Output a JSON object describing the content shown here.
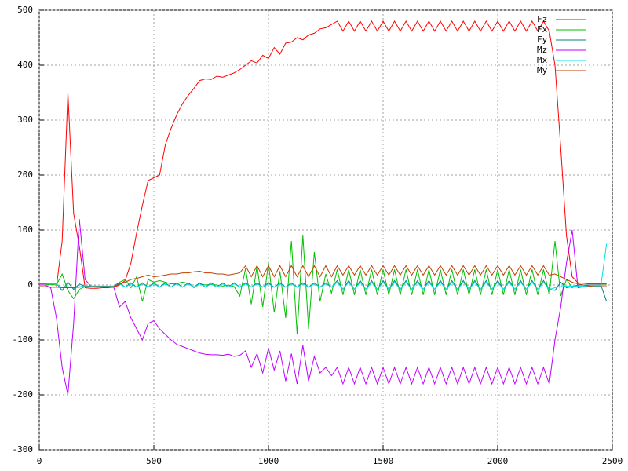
{
  "chart_data": {
    "type": "line",
    "x": [
      0,
      25,
      50,
      75,
      100,
      125,
      150,
      175,
      200,
      225,
      250,
      275,
      300,
      325,
      350,
      375,
      400,
      425,
      450,
      475,
      500,
      525,
      550,
      575,
      600,
      625,
      650,
      675,
      700,
      725,
      750,
      775,
      800,
      825,
      850,
      875,
      900,
      925,
      950,
      975,
      1000,
      1025,
      1050,
      1075,
      1100,
      1125,
      1150,
      1175,
      1200,
      1225,
      1250,
      1275,
      1300,
      1325,
      1350,
      1375,
      1400,
      1425,
      1450,
      1475,
      1500,
      1525,
      1550,
      1575,
      1600,
      1625,
      1650,
      1675,
      1700,
      1725,
      1750,
      1775,
      1800,
      1825,
      1850,
      1875,
      1900,
      1925,
      1950,
      1975,
      2000,
      2025,
      2050,
      2075,
      2100,
      2125,
      2150,
      2175,
      2200,
      2225,
      2250,
      2275,
      2300,
      2325,
      2350,
      2375,
      2400,
      2425,
      2450,
      2475
    ],
    "series": [
      {
        "name": "Fz",
        "color": "#ff0000",
        "values": [
          -3,
          -3,
          -4,
          -4,
          80,
          350,
          130,
          70,
          -5,
          -6,
          -6,
          -5,
          -5,
          -4,
          0,
          8,
          40,
          95,
          145,
          190,
          195,
          200,
          255,
          285,
          310,
          330,
          345,
          358,
          372,
          375,
          374,
          380,
          378,
          382,
          386,
          392,
          400,
          408,
          404,
          418,
          412,
          432,
          420,
          440,
          442,
          450,
          446,
          455,
          458,
          466,
          468,
          474,
          480,
          462,
          480,
          462,
          480,
          462,
          480,
          462,
          480,
          462,
          480,
          462,
          480,
          462,
          480,
          462,
          480,
          462,
          480,
          462,
          480,
          462,
          480,
          462,
          480,
          462,
          480,
          462,
          480,
          462,
          480,
          462,
          480,
          462,
          480,
          462,
          480,
          462,
          400,
          250,
          90,
          15,
          4,
          3,
          2,
          2,
          2,
          2
        ]
      },
      {
        "name": "Fx",
        "color": "#00c000",
        "values": [
          0,
          0,
          1,
          0,
          20,
          -10,
          -25,
          -8,
          -3,
          -2,
          -2,
          -3,
          -3,
          -2,
          5,
          10,
          -5,
          15,
          -30,
          10,
          5,
          8,
          5,
          2,
          3,
          5,
          3,
          -5,
          2,
          0,
          1,
          0,
          -2,
          0,
          -3,
          -20,
          30,
          -35,
          35,
          -40,
          40,
          -50,
          25,
          -60,
          80,
          -90,
          90,
          -80,
          60,
          -30,
          20,
          -15,
          28,
          -18,
          28,
          -18,
          28,
          -18,
          28,
          -18,
          28,
          -18,
          28,
          -18,
          28,
          -18,
          28,
          -18,
          28,
          -18,
          28,
          -18,
          28,
          -18,
          28,
          -18,
          28,
          -18,
          28,
          -18,
          28,
          -18,
          28,
          -18,
          28,
          -18,
          28,
          -18,
          28,
          -18,
          80,
          -20,
          10,
          -5,
          0,
          0,
          0,
          0,
          0,
          0
        ]
      },
      {
        "name": "Fy",
        "color": "#008080",
        "values": [
          2,
          2,
          2,
          3,
          -10,
          5,
          -8,
          2,
          -3,
          -3,
          -4,
          -3,
          -3,
          -2,
          4,
          -4,
          4,
          -4,
          4,
          -4,
          4,
          -4,
          4,
          -4,
          4,
          -4,
          4,
          -4,
          4,
          -4,
          4,
          -4,
          4,
          -4,
          4,
          -4,
          4,
          -4,
          4,
          -4,
          4,
          -4,
          4,
          -4,
          4,
          -4,
          4,
          -4,
          4,
          -4,
          4,
          -4,
          8,
          -8,
          8,
          -8,
          8,
          -8,
          8,
          -8,
          8,
          -8,
          8,
          -8,
          8,
          -8,
          8,
          -8,
          8,
          -8,
          8,
          -8,
          8,
          -8,
          8,
          -8,
          8,
          -8,
          8,
          -8,
          8,
          -8,
          8,
          -8,
          8,
          -8,
          8,
          -8,
          8,
          -8,
          -10,
          5,
          -5,
          -3,
          0,
          0,
          0,
          0,
          0,
          -30
        ]
      },
      {
        "name": "Mz",
        "color": "#c000ff",
        "values": [
          0,
          0,
          -5,
          -60,
          -150,
          -200,
          -70,
          120,
          10,
          -2,
          -3,
          -3,
          -4,
          -4,
          -40,
          -30,
          -60,
          -80,
          -100,
          -70,
          -65,
          -80,
          -90,
          -100,
          -108,
          -112,
          -116,
          -120,
          -124,
          -126,
          -127,
          -127,
          -128,
          -126,
          -130,
          -128,
          -120,
          -150,
          -125,
          -160,
          -115,
          -155,
          -120,
          -175,
          -125,
          -180,
          -110,
          -175,
          -130,
          -160,
          -150,
          -165,
          -150,
          -180,
          -150,
          -180,
          -150,
          -180,
          -150,
          -180,
          -150,
          -180,
          -150,
          -180,
          -150,
          -180,
          -150,
          -180,
          -150,
          -180,
          -150,
          -180,
          -150,
          -180,
          -150,
          -180,
          -150,
          -180,
          -150,
          -180,
          -150,
          -180,
          -150,
          -180,
          -150,
          -180,
          -150,
          -180,
          -150,
          -180,
          -100,
          -40,
          40,
          100,
          -5,
          -3,
          -3,
          -3,
          -3,
          -3
        ]
      },
      {
        "name": "Mx",
        "color": "#00e0e0",
        "values": [
          3,
          3,
          2,
          2,
          -5,
          -3,
          -5,
          -3,
          -2,
          -2,
          -2,
          -2,
          -2,
          -2,
          2,
          -4,
          2,
          -4,
          2,
          -4,
          2,
          -4,
          2,
          -4,
          2,
          -4,
          2,
          -4,
          2,
          -4,
          2,
          -4,
          2,
          -4,
          2,
          -4,
          2,
          -4,
          2,
          -4,
          2,
          -4,
          2,
          -4,
          2,
          -4,
          2,
          -4,
          2,
          -4,
          2,
          -4,
          5,
          -8,
          5,
          -8,
          5,
          -8,
          5,
          -8,
          5,
          -8,
          5,
          -8,
          5,
          -8,
          5,
          -8,
          5,
          -8,
          5,
          -8,
          5,
          -8,
          5,
          -8,
          5,
          -8,
          5,
          -8,
          5,
          -8,
          5,
          -8,
          5,
          -8,
          5,
          -8,
          5,
          -8,
          -5,
          -3,
          -2,
          -2,
          -2,
          -2,
          -2,
          -2,
          -2,
          75
        ]
      },
      {
        "name": "My",
        "color": "#c04000",
        "values": [
          -3,
          -3,
          -4,
          -4,
          -5,
          -5,
          -5,
          -4,
          -3,
          -3,
          -3,
          -3,
          -3,
          -3,
          2,
          5,
          10,
          12,
          15,
          18,
          15,
          16,
          18,
          20,
          20,
          22,
          22,
          24,
          25,
          22,
          22,
          20,
          20,
          18,
          20,
          22,
          35,
          15,
          35,
          15,
          35,
          15,
          35,
          15,
          35,
          15,
          35,
          15,
          35,
          15,
          35,
          15,
          35,
          18,
          35,
          18,
          35,
          18,
          35,
          18,
          35,
          18,
          35,
          18,
          35,
          18,
          35,
          18,
          35,
          18,
          35,
          18,
          35,
          18,
          35,
          18,
          35,
          18,
          35,
          18,
          35,
          18,
          35,
          18,
          35,
          18,
          35,
          18,
          35,
          18,
          20,
          15,
          10,
          5,
          2,
          0,
          -2,
          -3,
          -3,
          -3
        ]
      }
    ],
    "xlim": [
      0,
      2500
    ],
    "xticks": [
      0,
      500,
      1000,
      1500,
      2000,
      2500
    ],
    "ylim": [
      -300,
      500
    ],
    "yticks": [
      -300,
      -200,
      -100,
      0,
      100,
      200,
      300,
      400,
      500
    ],
    "grid": true,
    "legend": "top-right"
  }
}
